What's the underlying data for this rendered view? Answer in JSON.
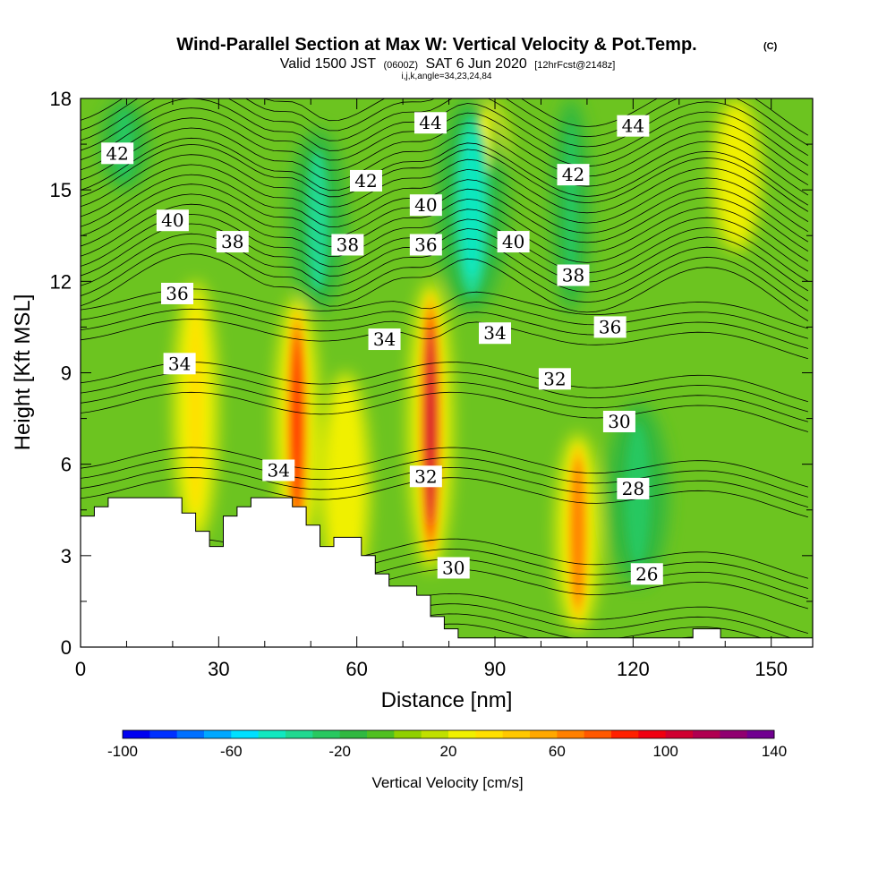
{
  "title": {
    "main": "Wind-Parallel Section at Max W: Vertical Velocity & Pot.Temp.",
    "copyright": "(C)",
    "valid_prefix": "Valid 1500 JST",
    "valid_utc": "(0600Z)",
    "valid_date": "SAT 6 Jun 2020",
    "forecast": "[12hrFcst@2148z]",
    "indices": "i,j,k,angle=34,23,24,84"
  },
  "chart_data": {
    "type": "heatmap",
    "xlabel": "Distance [nm]",
    "ylabel": "Height [Kft MSL]",
    "xlim": [
      0,
      159
    ],
    "ylim": [
      0,
      18
    ],
    "x_ticks": [
      "0",
      "30",
      "60",
      "90",
      "120",
      "150"
    ],
    "y_ticks": [
      "0",
      "3",
      "6",
      "9",
      "12",
      "15",
      "18"
    ],
    "vertical_velocity_cells": [
      {
        "x": [
          23,
          27
        ],
        "y": [
          3.5,
          12
        ],
        "w": 30
      },
      {
        "x": [
          45,
          49
        ],
        "y": [
          3,
          11.5
        ],
        "w": 85
      },
      {
        "x": [
          74,
          78
        ],
        "y": [
          2.5,
          12
        ],
        "w": 105
      },
      {
        "x": [
          106,
          110
        ],
        "y": [
          0.5,
          7
        ],
        "w": 65
      },
      {
        "x": [
          55,
          60
        ],
        "y": [
          1.5,
          9
        ],
        "w": 25
      },
      {
        "x": [
          140,
          145
        ],
        "y": [
          13,
          18
        ],
        "w": 20
      },
      {
        "x": [
          86,
          90
        ],
        "y": [
          15,
          18
        ],
        "w": 25
      },
      {
        "x": [
          80,
          90
        ],
        "y": [
          11,
          18
        ],
        "w": -45
      },
      {
        "x": [
          48,
          55
        ],
        "y": [
          11,
          17
        ],
        "w": -35
      },
      {
        "x": [
          105,
          108
        ],
        "y": [
          11,
          18
        ],
        "w": -30
      },
      {
        "x": [
          117,
          125
        ],
        "y": [
          2,
          8
        ],
        "w": -25
      },
      {
        "x": [
          7,
          12
        ],
        "y": [
          15,
          18
        ],
        "w": -25
      }
    ],
    "theta_contours_K": [
      26,
      28,
      30,
      32,
      34,
      36,
      38,
      40,
      42,
      44
    ],
    "theta_labels": [
      {
        "value": "42",
        "x": 8,
        "y": 16.2
      },
      {
        "value": "40",
        "x": 20,
        "y": 14
      },
      {
        "value": "38",
        "x": 33,
        "y": 13.3
      },
      {
        "value": "36",
        "x": 21,
        "y": 11.6
      },
      {
        "value": "34",
        "x": 21.5,
        "y": 9.3
      },
      {
        "value": "34",
        "x": 43,
        "y": 5.8
      },
      {
        "value": "42",
        "x": 62,
        "y": 15.3
      },
      {
        "value": "38",
        "x": 58,
        "y": 13.2
      },
      {
        "value": "34",
        "x": 66,
        "y": 10.1
      },
      {
        "value": "44",
        "x": 76,
        "y": 17.2
      },
      {
        "value": "40",
        "x": 75,
        "y": 14.5
      },
      {
        "value": "36",
        "x": 75,
        "y": 13.2
      },
      {
        "value": "32",
        "x": 75,
        "y": 5.6
      },
      {
        "value": "30",
        "x": 81,
        "y": 2.6
      },
      {
        "value": "34",
        "x": 90,
        "y": 10.3
      },
      {
        "value": "40",
        "x": 94,
        "y": 13.3
      },
      {
        "value": "42",
        "x": 107,
        "y": 15.5
      },
      {
        "value": "38",
        "x": 107,
        "y": 12.2
      },
      {
        "value": "32",
        "x": 103,
        "y": 8.8
      },
      {
        "value": "36",
        "x": 115,
        "y": 10.5
      },
      {
        "value": "30",
        "x": 117,
        "y": 7.4
      },
      {
        "value": "28",
        "x": 120,
        "y": 5.2
      },
      {
        "value": "26",
        "x": 123,
        "y": 2.4
      },
      {
        "value": "44",
        "x": 120,
        "y": 17.1
      }
    ],
    "terrain": [
      [
        0,
        4.3
      ],
      [
        3,
        4.3
      ],
      [
        3,
        4.6
      ],
      [
        6,
        4.6
      ],
      [
        6,
        4.9
      ],
      [
        22,
        4.9
      ],
      [
        22,
        4.4
      ],
      [
        25,
        4.4
      ],
      [
        25,
        3.8
      ],
      [
        28,
        3.8
      ],
      [
        28,
        3.3
      ],
      [
        31,
        3.3
      ],
      [
        31,
        4.3
      ],
      [
        34,
        4.3
      ],
      [
        34,
        4.6
      ],
      [
        37,
        4.6
      ],
      [
        37,
        4.9
      ],
      [
        46,
        4.9
      ],
      [
        46,
        4.6
      ],
      [
        49,
        4.6
      ],
      [
        49,
        4.0
      ],
      [
        52,
        4.0
      ],
      [
        52,
        3.3
      ],
      [
        55,
        3.3
      ],
      [
        55,
        3.6
      ],
      [
        61,
        3.6
      ],
      [
        61,
        3.0
      ],
      [
        64,
        3.0
      ],
      [
        64,
        2.4
      ],
      [
        67,
        2.4
      ],
      [
        67,
        2.0
      ],
      [
        73,
        2.0
      ],
      [
        73,
        1.7
      ],
      [
        76,
        1.7
      ],
      [
        76,
        1.0
      ],
      [
        79,
        1.0
      ],
      [
        79,
        0.6
      ],
      [
        82,
        0.6
      ],
      [
        82,
        0.3
      ],
      [
        133,
        0.3
      ],
      [
        133,
        0.6
      ],
      [
        139,
        0.6
      ],
      [
        139,
        0.3
      ],
      [
        159,
        0.3
      ],
      [
        159,
        0
      ],
      [
        0,
        0
      ]
    ],
    "colorbar": {
      "label": "Vertical Velocity [cm/s]",
      "min": -100,
      "max": 140,
      "step": 10,
      "tick_labels": [
        "-100",
        "-60",
        "-20",
        "20",
        "60",
        "100",
        "140"
      ],
      "colors": [
        "#0000f0",
        "#0030ff",
        "#0070ff",
        "#00a8ff",
        "#00e0ff",
        "#10e8c0",
        "#20d890",
        "#28c860",
        "#30b840",
        "#50c020",
        "#90d000",
        "#c0e000",
        "#f0f000",
        "#ffe000",
        "#ffc800",
        "#ffa800",
        "#ff8000",
        "#ff5800",
        "#ff2000",
        "#f00010",
        "#d00030",
        "#b00050",
        "#900070",
        "#700090"
      ]
    }
  }
}
